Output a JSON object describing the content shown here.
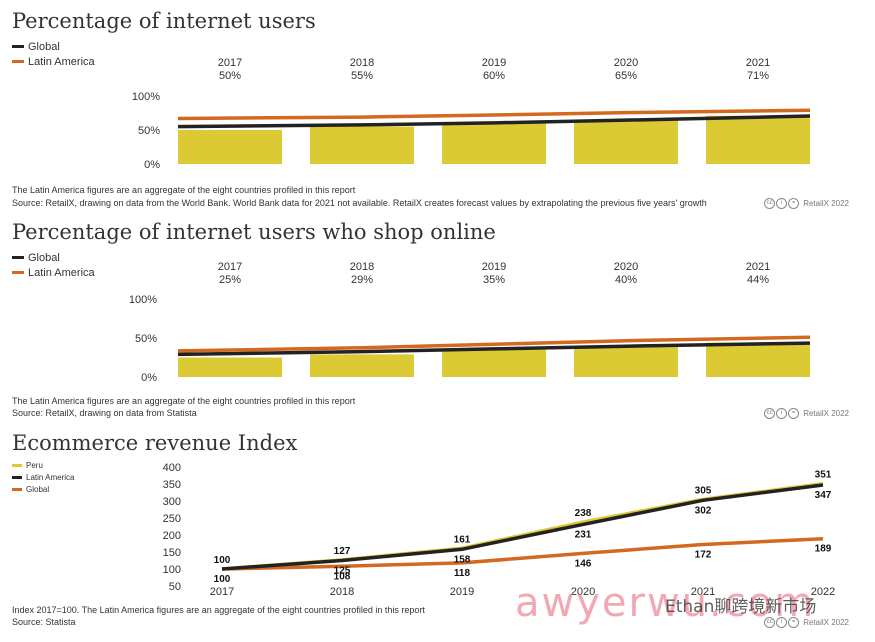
{
  "colors": {
    "bar": "#dcca34",
    "global": "#222222",
    "latam": "#d2691e",
    "peru": "#dcca34"
  },
  "charts": {
    "internet_users": {
      "title": "Percentage of internet users",
      "legend": [
        "Global",
        "Latin America"
      ],
      "note": "The Latin America figures are an aggregate of the eight countries profiled in this report",
      "source": "Source: RetailX, drawing on data from the World Bank. World Bank data for 2021 not available. RetailX creates forecast values by extrapolating the previous five years' growth",
      "credit": "RetailX 2022"
    },
    "shop_online": {
      "title": "Percentage of internet users who shop online",
      "legend": [
        "Global",
        "Latin America"
      ],
      "note": "The Latin America figures are an aggregate of the eight countries profiled in this report",
      "source": "Source: RetailX, drawing on data from Statista",
      "credit": "RetailX 2022"
    },
    "revenue_index": {
      "title": "Ecommerce revenue Index",
      "legend": [
        "Peru",
        "Latin America",
        "Global"
      ],
      "note": "Index 2017=100. The Latin America figures are an aggregate of the eight countries profiled in this report",
      "source": "Source: Statista",
      "credit": "RetailX 2022"
    }
  },
  "watermark": {
    "text": "awyerwu.com",
    "text2": "Ethan聊跨境新市场"
  },
  "chart_data": [
    {
      "type": "bar",
      "title": "Percentage of internet users",
      "categories": [
        "2017",
        "2018",
        "2019",
        "2020",
        "2021"
      ],
      "category_labels": [
        "50%",
        "55%",
        "60%",
        "65%",
        "71%"
      ],
      "ylim": [
        0,
        100
      ],
      "yticks": [
        0,
        50,
        100
      ],
      "ytick_labels": [
        "0%",
        "50%",
        "100%"
      ],
      "series": [
        {
          "kind": "bar",
          "values": [
            50,
            55,
            60,
            65,
            71
          ]
        },
        {
          "kind": "line",
          "name": "Global",
          "values": [
            55,
            57.5,
            60.5,
            64.5,
            70.5
          ]
        },
        {
          "kind": "line",
          "name": "Latin America",
          "values": [
            67,
            69,
            72,
            75.5,
            79
          ]
        }
      ]
    },
    {
      "type": "bar",
      "title": "Percentage of internet users who shop online",
      "categories": [
        "2017",
        "2018",
        "2019",
        "2020",
        "2021"
      ],
      "category_labels": [
        "25%",
        "29%",
        "35%",
        "40%",
        "44%"
      ],
      "ylim": [
        0,
        100
      ],
      "yticks": [
        0,
        50,
        100
      ],
      "ytick_labels": [
        "0%",
        "50%",
        "100%"
      ],
      "series": [
        {
          "kind": "bar",
          "values": [
            25,
            29,
            35,
            40,
            44
          ]
        },
        {
          "kind": "line",
          "name": "Global",
          "values": [
            29,
            32.5,
            36,
            39.5,
            43.5
          ]
        },
        {
          "kind": "line",
          "name": "Latin America",
          "values": [
            33.5,
            37.5,
            42,
            46.5,
            51
          ]
        }
      ]
    },
    {
      "type": "line",
      "title": "Ecommerce revenue Index",
      "x": [
        "2017",
        "2018",
        "2019",
        "2020",
        "2021",
        "2022"
      ],
      "ylim": [
        50,
        400
      ],
      "yticks": [
        50,
        100,
        150,
        200,
        250,
        300,
        350,
        400
      ],
      "series": [
        {
          "name": "Peru",
          "values": [
            100,
            127,
            161,
            238,
            305,
            351
          ]
        },
        {
          "name": "Latin America",
          "values": [
            100,
            125,
            158,
            231,
            302,
            347
          ]
        },
        {
          "name": "Global",
          "values": [
            100,
            108,
            118,
            146,
            172,
            189
          ]
        }
      ]
    }
  ]
}
